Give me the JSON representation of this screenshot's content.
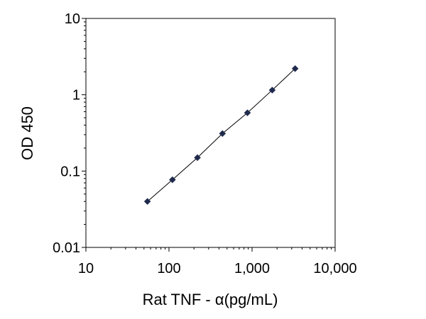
{
  "chart_data": {
    "type": "scatter",
    "title": "",
    "xlabel": "Rat TNF - α(pg/mL)",
    "ylabel": "OD 450",
    "x_scale": "log",
    "y_scale": "log",
    "xlim": [
      10,
      10000
    ],
    "ylim": [
      0.01,
      10
    ],
    "x_ticks": [
      10,
      100,
      1000,
      10000
    ],
    "x_tick_labels": [
      "10",
      "100",
      "1,000",
      "10,000"
    ],
    "y_ticks": [
      0.01,
      0.1,
      1,
      10
    ],
    "y_tick_labels": [
      "0.01",
      "0.1",
      "1",
      "10"
    ],
    "grid": false,
    "legend": "none",
    "fit_line": true,
    "marker": "diamond",
    "marker_color": "#1f2a4d",
    "line_color": "#000000",
    "series": [
      {
        "x": [
          55,
          110,
          220,
          440,
          880,
          1750,
          3300
        ],
        "y": [
          0.04,
          0.077,
          0.15,
          0.31,
          0.58,
          1.15,
          2.2
        ]
      }
    ]
  }
}
